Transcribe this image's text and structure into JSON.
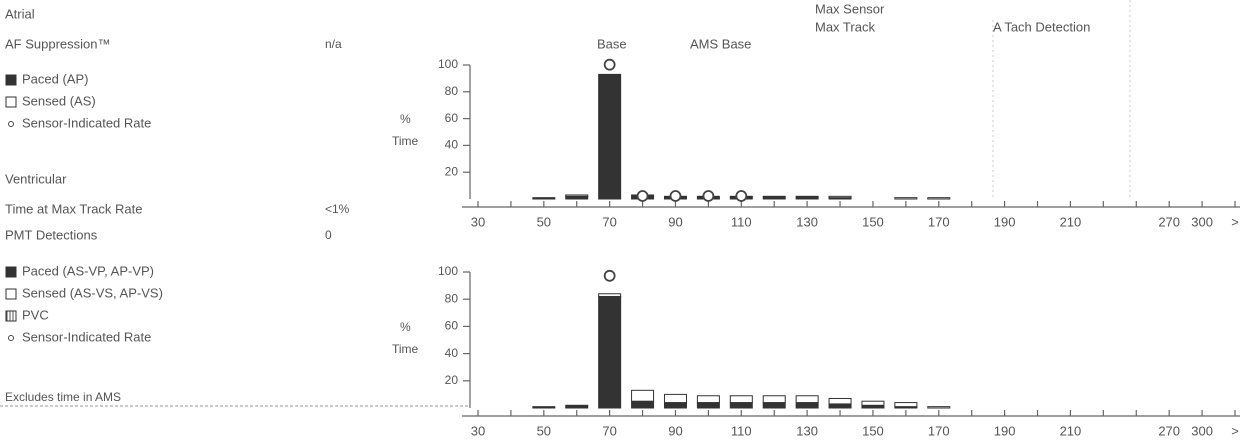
{
  "left_panel": {
    "atrial_heading": "Atrial",
    "af_suppression_label": "AF Suppression™",
    "af_suppression_value": "n/a",
    "ventricular_heading": "Ventricular",
    "max_track_label": "Time at Max Track Rate",
    "max_track_value": "<1%",
    "pmt_label": "PMT Detections",
    "pmt_value": "0",
    "footnote": "Excludes time in AMS"
  },
  "chart_data": [
    {
      "type": "bar",
      "ylabel_lines": [
        "%",
        "Time"
      ],
      "annotations": [
        "Base",
        "AMS Base",
        "Max Sensor",
        "Max Track",
        "A Tach Detection"
      ],
      "categories": [
        "30",
        null,
        "50",
        null,
        "70",
        null,
        "90",
        null,
        "110",
        null,
        "130",
        null,
        "150",
        null,
        "170",
        null,
        "190",
        null,
        "210",
        null,
        null,
        "270",
        "300",
        ">"
      ],
      "series": [
        {
          "name": "Paced (AP)",
          "color": "#333333",
          "values": [
            0,
            0,
            1,
            2,
            93,
            3,
            2,
            2,
            2,
            2,
            2,
            1,
            0,
            0,
            0,
            0,
            0,
            0,
            0,
            0,
            0,
            0,
            0,
            0
          ]
        },
        {
          "name": "Sensed (AS)",
          "color": "#ffffff",
          "values": [
            0,
            0,
            0,
            1,
            0,
            0,
            0,
            0,
            0,
            0,
            0,
            1,
            0,
            1,
            1,
            0,
            0,
            0,
            0,
            0,
            0,
            0,
            0,
            0
          ]
        },
        {
          "name": "Sensor-Indicated Rate",
          "color": "#444444",
          "values": [
            null,
            null,
            null,
            null,
            98,
            0,
            0,
            0,
            0,
            null,
            null,
            null,
            null,
            null,
            null,
            null,
            null,
            null,
            null,
            null,
            null,
            null,
            null,
            null
          ]
        }
      ],
      "ylim": [
        0,
        100
      ],
      "yticks": [
        20,
        40,
        60,
        80,
        100
      ]
    },
    {
      "type": "bar",
      "ylabel_lines": [
        "%",
        "Time"
      ],
      "categories": [
        "30",
        null,
        "50",
        null,
        "70",
        null,
        "90",
        null,
        "110",
        null,
        "130",
        null,
        "150",
        null,
        "170",
        null,
        "190",
        null,
        "210",
        null,
        null,
        "270",
        "300",
        ">"
      ],
      "series": [
        {
          "name": "Paced (AS-VP, AP-VP)",
          "color": "#333333",
          "values": [
            0,
            0,
            1,
            2,
            82,
            5,
            4,
            4,
            4,
            4,
            4,
            3,
            2,
            1,
            0,
            0,
            0,
            0,
            0,
            0,
            0,
            0,
            0,
            0
          ]
        },
        {
          "name": "Sensed (AS-VS, AP-VS)",
          "color": "#ffffff",
          "values": [
            0,
            0,
            0,
            0,
            2,
            8,
            6,
            5,
            5,
            5,
            5,
            4,
            3,
            3,
            1,
            0,
            0,
            0,
            0,
            0,
            0,
            0,
            0,
            0
          ]
        },
        {
          "name": "PVC",
          "color": "#999999",
          "values": [
            0,
            0,
            0,
            0,
            0,
            0,
            0,
            0,
            0,
            0,
            0,
            0,
            0,
            0,
            0,
            0,
            0,
            0,
            0,
            0,
            0,
            0,
            0,
            0
          ]
        },
        {
          "name": "Sensor-Indicated Rate",
          "color": "#444444",
          "values": [
            null,
            null,
            null,
            null,
            95,
            null,
            null,
            null,
            null,
            null,
            null,
            null,
            null,
            null,
            null,
            null,
            null,
            null,
            null,
            null,
            null,
            null,
            null,
            null
          ]
        }
      ],
      "ylim": [
        0,
        100
      ],
      "yticks": [
        20,
        40,
        60,
        80,
        100
      ]
    }
  ]
}
